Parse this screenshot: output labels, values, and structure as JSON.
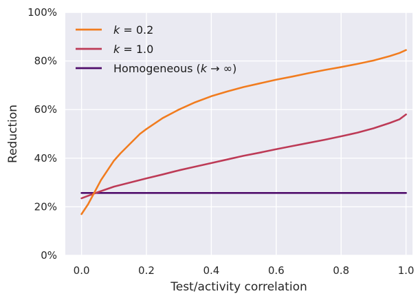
{
  "chart_data": {
    "type": "line",
    "title": "",
    "xlabel": "Test/activity correlation",
    "ylabel": "Reduction",
    "xlim": [
      -0.05,
      1.02
    ],
    "ylim": [
      0,
      100
    ],
    "x_ticks": [
      0.0,
      0.2,
      0.4,
      0.6,
      0.8,
      1.0
    ],
    "x_tick_labels": [
      "0.0",
      "0.2",
      "0.4",
      "0.6",
      "0.8",
      "1.0"
    ],
    "y_ticks": [
      0,
      20,
      40,
      60,
      80,
      100
    ],
    "y_tick_labels": [
      "0%",
      "20%",
      "40%",
      "60%",
      "80%",
      "100%"
    ],
    "grid": true,
    "background": "#eaeaf2",
    "legend_position": "top-left",
    "series": [
      {
        "name": "k = 0.2",
        "legend_k": "k",
        "legend_rest": " = 0.2",
        "color": "#f17c1f",
        "x": [
          0.0,
          0.02,
          0.04,
          0.06,
          0.08,
          0.1,
          0.12,
          0.15,
          0.18,
          0.2,
          0.25,
          0.3,
          0.35,
          0.4,
          0.45,
          0.5,
          0.55,
          0.6,
          0.65,
          0.7,
          0.75,
          0.8,
          0.85,
          0.9,
          0.95,
          0.98,
          1.0
        ],
        "y": [
          17,
          21,
          26,
          31,
          35,
          39,
          42,
          46,
          50,
          52,
          56.5,
          60,
          63,
          65.5,
          67.5,
          69.3,
          70.8,
          72.3,
          73.6,
          75,
          76.3,
          77.5,
          78.8,
          80.2,
          82,
          83.3,
          84.5
        ]
      },
      {
        "name": "k = 1.0",
        "legend_k": "k",
        "legend_rest": " = 1.0",
        "color": "#bd3a56",
        "x": [
          0.0,
          0.05,
          0.1,
          0.15,
          0.2,
          0.25,
          0.3,
          0.35,
          0.4,
          0.45,
          0.5,
          0.55,
          0.6,
          0.65,
          0.7,
          0.75,
          0.8,
          0.85,
          0.9,
          0.95,
          0.98,
          1.0
        ],
        "y": [
          23.5,
          26,
          28.3,
          30,
          31.7,
          33.3,
          35,
          36.5,
          38,
          39.5,
          41,
          42.3,
          43.7,
          45,
          46.3,
          47.6,
          49,
          50.5,
          52.3,
          54.5,
          56,
          58
        ]
      },
      {
        "name": "Homogeneous (k → ∞)",
        "legend_k": "",
        "legend_rest": "",
        "legend_label": "Homogeneous (",
        "legend_label_k": "k",
        "legend_label_tail": " → ∞)",
        "color": "#4f0d6b",
        "x": [
          0.0,
          1.0
        ],
        "y": [
          25.7,
          25.7
        ]
      }
    ]
  }
}
